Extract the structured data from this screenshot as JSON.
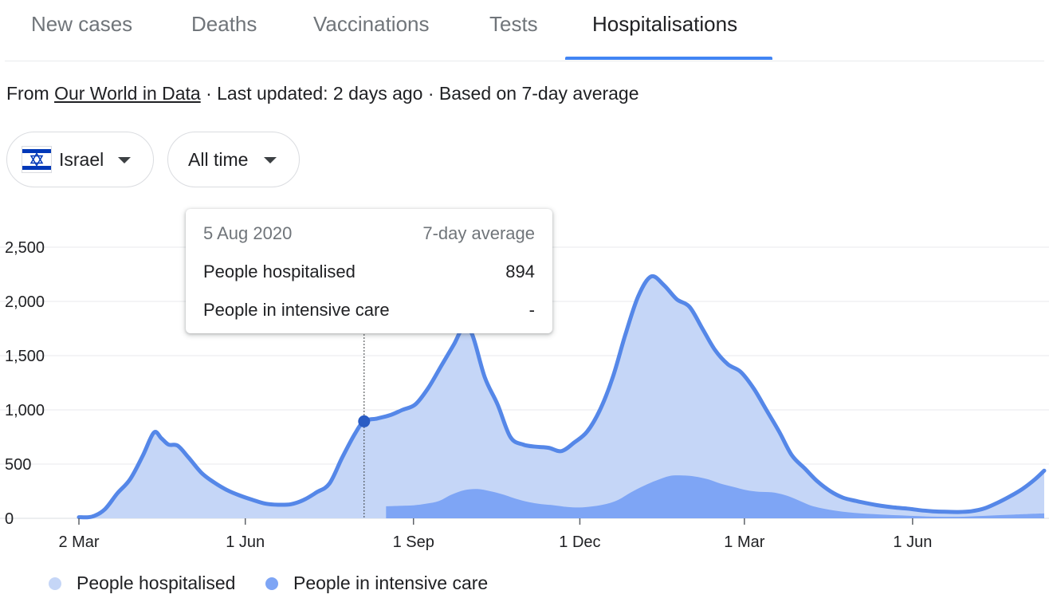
{
  "tabs": [
    {
      "label": "New cases"
    },
    {
      "label": "Deaths"
    },
    {
      "label": "Vaccinations"
    },
    {
      "label": "Tests"
    },
    {
      "label": "Hospitalisations"
    }
  ],
  "active_tab": "Hospitalisations",
  "source": {
    "prefix": "From",
    "link": "Our World in Data",
    "suffix": "· Last updated: 2 days ago · Based on 7-day average"
  },
  "filters": {
    "country": "Israel",
    "country_flag_icon": "israel-flag-icon",
    "range": "All time"
  },
  "tooltip": {
    "date": "5 Aug 2020",
    "header_right": "7-day average",
    "rows": [
      {
        "label": "People hospitalised",
        "value": "894"
      },
      {
        "label": "People in intensive care",
        "value": "-"
      }
    ]
  },
  "colors": {
    "accent": "#4285f4",
    "hospitalised_line": "#5587e8",
    "hospitalised_fill": "#c5d6f7",
    "icu_fill": "#7ea5f5",
    "marker": "#2a5cc4"
  },
  "chart_data": {
    "type": "area",
    "x_unit": "date",
    "x_range": [
      "2020-03-02",
      "2021-08-12"
    ],
    "ylim": [
      0,
      2500
    ],
    "y_ticks": [
      "0",
      "500",
      "1,000",
      "1,500",
      "2,000",
      "2,500"
    ],
    "x_ticks": [
      {
        "label": "2 Mar",
        "date": "2020-03-02"
      },
      {
        "label": "1 Jun",
        "date": "2020-06-01"
      },
      {
        "label": "1 Sep",
        "date": "2020-09-01"
      },
      {
        "label": "1 Dec",
        "date": "2020-12-01"
      },
      {
        "label": "1 Mar",
        "date": "2021-03-01"
      },
      {
        "label": "1 Jun",
        "date": "2021-06-01"
      }
    ],
    "grid": true,
    "legend_position": "bottom-left",
    "highlight": {
      "date": "2020-08-05",
      "value": 894
    },
    "series": [
      {
        "name": "People hospitalised",
        "points": [
          [
            "2020-03-02",
            10
          ],
          [
            "2020-03-09",
            15
          ],
          [
            "2020-03-16",
            80
          ],
          [
            "2020-03-23",
            230
          ],
          [
            "2020-03-30",
            360
          ],
          [
            "2020-04-06",
            580
          ],
          [
            "2020-04-12",
            790
          ],
          [
            "2020-04-16",
            740
          ],
          [
            "2020-04-20",
            680
          ],
          [
            "2020-04-25",
            670
          ],
          [
            "2020-05-01",
            560
          ],
          [
            "2020-05-08",
            420
          ],
          [
            "2020-05-15",
            330
          ],
          [
            "2020-05-22",
            260
          ],
          [
            "2020-05-29",
            210
          ],
          [
            "2020-06-05",
            170
          ],
          [
            "2020-06-12",
            135
          ],
          [
            "2020-06-19",
            125
          ],
          [
            "2020-06-26",
            130
          ],
          [
            "2020-07-03",
            170
          ],
          [
            "2020-07-10",
            240
          ],
          [
            "2020-07-17",
            320
          ],
          [
            "2020-07-24",
            560
          ],
          [
            "2020-07-31",
            780
          ],
          [
            "2020-08-05",
            894
          ],
          [
            "2020-08-12",
            920
          ],
          [
            "2020-08-19",
            950
          ],
          [
            "2020-08-26",
            1000
          ],
          [
            "2020-09-02",
            1050
          ],
          [
            "2020-09-09",
            1200
          ],
          [
            "2020-09-16",
            1400
          ],
          [
            "2020-09-23",
            1600
          ],
          [
            "2020-09-28",
            1750
          ],
          [
            "2020-10-03",
            1700
          ],
          [
            "2020-10-10",
            1300
          ],
          [
            "2020-10-17",
            1050
          ],
          [
            "2020-10-24",
            750
          ],
          [
            "2020-10-31",
            680
          ],
          [
            "2020-11-07",
            660
          ],
          [
            "2020-11-14",
            650
          ],
          [
            "2020-11-21",
            620
          ],
          [
            "2020-11-28",
            700
          ],
          [
            "2020-12-05",
            800
          ],
          [
            "2020-12-12",
            1000
          ],
          [
            "2020-12-19",
            1300
          ],
          [
            "2020-12-26",
            1700
          ],
          [
            "2021-01-02",
            2050
          ],
          [
            "2021-01-09",
            2230
          ],
          [
            "2021-01-16",
            2150
          ],
          [
            "2021-01-23",
            2020
          ],
          [
            "2021-01-30",
            1950
          ],
          [
            "2021-02-06",
            1750
          ],
          [
            "2021-02-13",
            1550
          ],
          [
            "2021-02-20",
            1420
          ],
          [
            "2021-02-27",
            1350
          ],
          [
            "2021-03-06",
            1200
          ],
          [
            "2021-03-13",
            1000
          ],
          [
            "2021-03-20",
            800
          ],
          [
            "2021-03-27",
            580
          ],
          [
            "2021-04-03",
            460
          ],
          [
            "2021-04-10",
            340
          ],
          [
            "2021-04-17",
            250
          ],
          [
            "2021-04-24",
            190
          ],
          [
            "2021-05-01",
            160
          ],
          [
            "2021-05-08",
            135
          ],
          [
            "2021-05-15",
            115
          ],
          [
            "2021-05-22",
            100
          ],
          [
            "2021-05-29",
            90
          ],
          [
            "2021-06-05",
            75
          ],
          [
            "2021-06-12",
            65
          ],
          [
            "2021-06-19",
            60
          ],
          [
            "2021-06-26",
            58
          ],
          [
            "2021-07-03",
            65
          ],
          [
            "2021-07-10",
            90
          ],
          [
            "2021-07-17",
            140
          ],
          [
            "2021-07-24",
            200
          ],
          [
            "2021-07-31",
            270
          ],
          [
            "2021-08-07",
            360
          ],
          [
            "2021-08-12",
            440
          ]
        ]
      },
      {
        "name": "People in intensive care",
        "points": [
          [
            "2020-08-17",
            110
          ],
          [
            "2020-08-24",
            115
          ],
          [
            "2020-09-01",
            120
          ],
          [
            "2020-09-08",
            135
          ],
          [
            "2020-09-15",
            160
          ],
          [
            "2020-09-22",
            220
          ],
          [
            "2020-09-29",
            260
          ],
          [
            "2020-10-06",
            270
          ],
          [
            "2020-10-13",
            250
          ],
          [
            "2020-10-20",
            220
          ],
          [
            "2020-10-27",
            180
          ],
          [
            "2020-11-03",
            150
          ],
          [
            "2020-11-10",
            130
          ],
          [
            "2020-11-17",
            120
          ],
          [
            "2020-11-24",
            105
          ],
          [
            "2020-12-01",
            100
          ],
          [
            "2020-12-08",
            110
          ],
          [
            "2020-12-15",
            130
          ],
          [
            "2020-12-22",
            170
          ],
          [
            "2020-12-29",
            240
          ],
          [
            "2021-01-05",
            300
          ],
          [
            "2021-01-12",
            350
          ],
          [
            "2021-01-19",
            390
          ],
          [
            "2021-01-26",
            395
          ],
          [
            "2021-02-02",
            385
          ],
          [
            "2021-02-09",
            360
          ],
          [
            "2021-02-16",
            320
          ],
          [
            "2021-02-23",
            290
          ],
          [
            "2021-03-02",
            260
          ],
          [
            "2021-03-09",
            245
          ],
          [
            "2021-03-16",
            240
          ],
          [
            "2021-03-23",
            215
          ],
          [
            "2021-03-30",
            170
          ],
          [
            "2021-04-06",
            120
          ],
          [
            "2021-04-13",
            90
          ],
          [
            "2021-04-20",
            70
          ],
          [
            "2021-04-27",
            55
          ],
          [
            "2021-05-04",
            45
          ],
          [
            "2021-05-11",
            38
          ],
          [
            "2021-05-18",
            32
          ],
          [
            "2021-05-25",
            28
          ],
          [
            "2021-06-01",
            22
          ],
          [
            "2021-06-08",
            18
          ],
          [
            "2021-06-15",
            15
          ],
          [
            "2021-06-22",
            14
          ],
          [
            "2021-06-29",
            15
          ],
          [
            "2021-07-06",
            20
          ],
          [
            "2021-07-13",
            25
          ],
          [
            "2021-07-20",
            30
          ],
          [
            "2021-07-27",
            35
          ],
          [
            "2021-08-03",
            40
          ],
          [
            "2021-08-12",
            45
          ]
        ]
      }
    ]
  }
}
